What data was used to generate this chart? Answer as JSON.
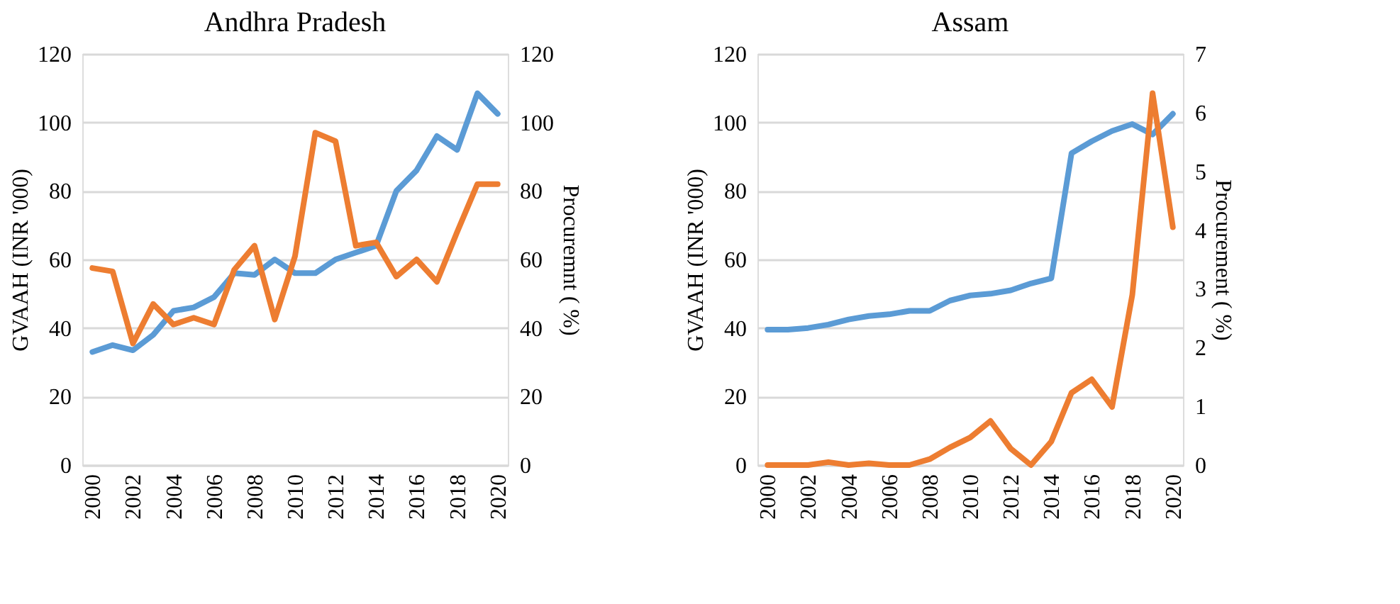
{
  "chart_data": [
    {
      "type": "line",
      "title": "Andhra Pradesh",
      "ylabel": "GVAAH (INR '000)",
      "y2label": "Procuremnt ( %)",
      "x": [
        2000,
        2001,
        2002,
        2003,
        2004,
        2005,
        2006,
        2007,
        2008,
        2009,
        2010,
        2011,
        2012,
        2013,
        2014,
        2015,
        2016,
        2017,
        2018,
        2019,
        2020
      ],
      "xlim": [
        1999.5,
        2020.5
      ],
      "xticks": [
        2000,
        2002,
        2004,
        2006,
        2008,
        2010,
        2012,
        2014,
        2016,
        2018,
        2020
      ],
      "ylim": [
        0,
        120
      ],
      "yticks": [
        0,
        20,
        40,
        60,
        80,
        100,
        120
      ],
      "y2lim": [
        0,
        120
      ],
      "y2ticks": [
        0,
        20,
        40,
        60,
        80,
        100,
        120
      ],
      "grid": "y",
      "series": [
        {
          "color": "#5b9bd5",
          "values": [
            33,
            35,
            33.5,
            38,
            45,
            46,
            49,
            56,
            55.5,
            60,
            56,
            56,
            60,
            62,
            64,
            80,
            86,
            96,
            92,
            108.5,
            102.5
          ]
        },
        {
          "color": "#ed7d31",
          "axis": "y2",
          "values": [
            57.5,
            56.5,
            35.5,
            47,
            41,
            43,
            41,
            57,
            64,
            42.5,
            61,
            97,
            94.5,
            64,
            65,
            55,
            60,
            53.5,
            68,
            82,
            82
          ]
        }
      ]
    },
    {
      "type": "line",
      "title": "Assam",
      "ylabel": "GVAAH (INR '000)",
      "y2label": "Procurement ( %)",
      "x": [
        2000,
        2001,
        2002,
        2003,
        2004,
        2005,
        2006,
        2007,
        2008,
        2009,
        2010,
        2011,
        2012,
        2013,
        2014,
        2015,
        2016,
        2017,
        2018,
        2019,
        2020
      ],
      "xlim": [
        1999.5,
        2020.5
      ],
      "xticks": [
        2000,
        2002,
        2004,
        2006,
        2008,
        2010,
        2012,
        2014,
        2016,
        2018,
        2020
      ],
      "ylim": [
        0,
        120
      ],
      "yticks": [
        0,
        20,
        40,
        60,
        80,
        100,
        120
      ],
      "y2lim": [
        0,
        7
      ],
      "y2ticks": [
        0,
        1,
        2,
        3,
        4,
        5,
        6,
        7
      ],
      "grid": "y",
      "series": [
        {
          "color": "#5b9bd5",
          "values": [
            39.5,
            39.5,
            40,
            41,
            42.5,
            43.5,
            44,
            45,
            45,
            48,
            49.5,
            50,
            51,
            53,
            54.5,
            91,
            94.5,
            97.5,
            99.5,
            96.5,
            102.5
          ]
        },
        {
          "color": "#ed7d31",
          "axis": "y2",
          "values": [
            0,
            0,
            0,
            0.05,
            0,
            0.03,
            0,
            0,
            0.1,
            0.3,
            0.47,
            0.75,
            0.28,
            0,
            0.4,
            1.23,
            1.46,
            0.99,
            2.9,
            6.33,
            4.05
          ]
        }
      ]
    }
  ]
}
